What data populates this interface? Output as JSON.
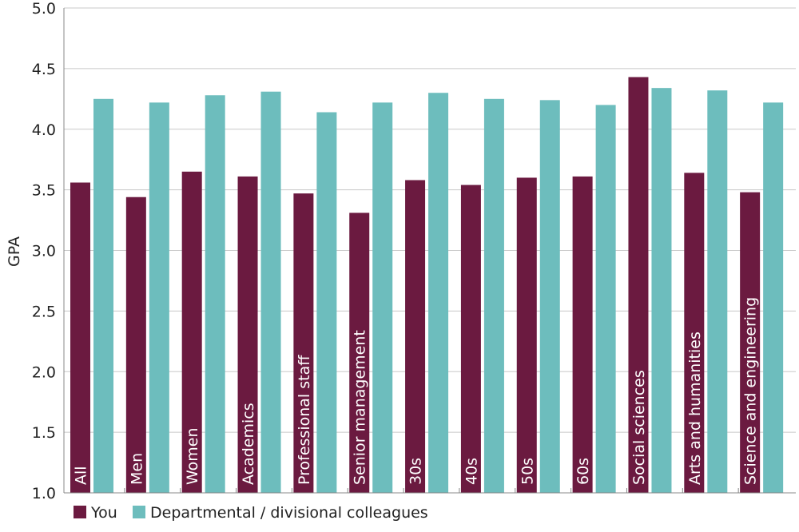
{
  "chart_data": {
    "type": "bar",
    "title": "",
    "xlabel": "",
    "ylabel": "GPA",
    "ylim": [
      1.0,
      5.0
    ],
    "yticks": [
      "1.0",
      "1.5",
      "2.0",
      "2.5",
      "3.0",
      "3.5",
      "4.0",
      "4.5",
      "5.0"
    ],
    "grid": true,
    "legend_position": "bottom-left",
    "categories": [
      "All",
      "Men",
      "Women",
      "Academics",
      "Professional staff",
      "Senior management",
      "30s",
      "40s",
      "50s",
      "60s",
      "Social sciences",
      "Arts and humanities",
      "Science and engineering"
    ],
    "series": [
      {
        "name": "You",
        "color": "#6b1a40",
        "values": [
          3.56,
          3.44,
          3.65,
          3.61,
          3.47,
          3.31,
          3.58,
          3.54,
          3.6,
          3.61,
          4.43,
          3.64,
          3.48
        ]
      },
      {
        "name": "Departmental / divisional colleagues",
        "color": "#6dbdbd",
        "values": [
          4.25,
          4.22,
          4.28,
          4.31,
          4.14,
          4.22,
          4.3,
          4.25,
          4.24,
          4.2,
          4.34,
          4.32,
          4.22
        ]
      }
    ]
  }
}
